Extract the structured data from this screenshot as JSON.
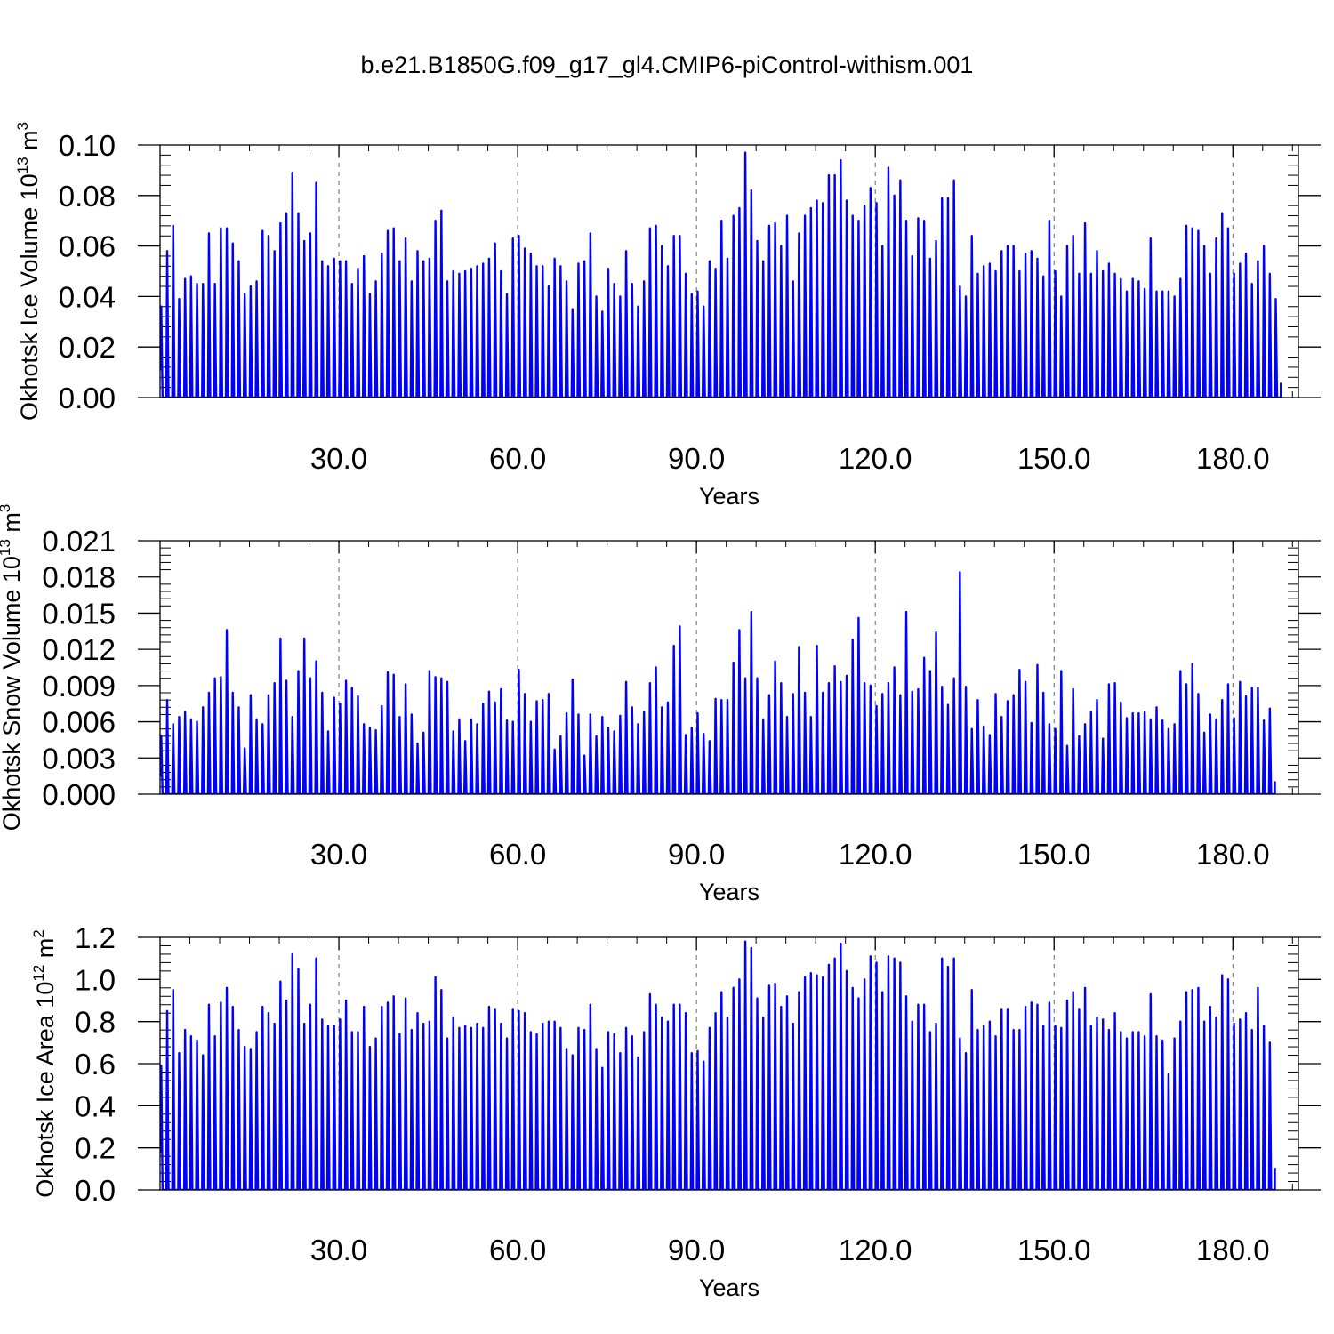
{
  "title": "b.e21.B1850G.f09_g17_gl4.CMIP6-piControl-withism.001",
  "line_color": "#0000ff",
  "chart_data": [
    {
      "type": "line",
      "title": "",
      "ylabel": "Okhotsk Ice Volume",
      "units": {
        "base": "10",
        "exp": "13",
        "unit": "m",
        "unit_exp": "3"
      },
      "xlabel": "Years",
      "xlim": [
        0,
        191
      ],
      "ylim": [
        0,
        0.1
      ],
      "yticks": [
        "0.00",
        "0.02",
        "0.04",
        "0.06",
        "0.08",
        "0.10"
      ],
      "xticks": [
        "30.0",
        "60.0",
        "90.0",
        "120.0",
        "150.0",
        "180.0"
      ],
      "x_gridlines": [
        30,
        60,
        90,
        120,
        150,
        180
      ],
      "series": [
        {
          "peaks": [
            0.036,
            0.058,
            0.068,
            0.039,
            0.047,
            0.048,
            0.045,
            0.045,
            0.065,
            0.045,
            0.067,
            0.067,
            0.061,
            0.054,
            0.041,
            0.044,
            0.046,
            0.066,
            0.064,
            0.058,
            0.069,
            0.073,
            0.089,
            0.073,
            0.062,
            0.065,
            0.085,
            0.054,
            0.052,
            0.055,
            0.054,
            0.054,
            0.045,
            0.051,
            0.056,
            0.041,
            0.046,
            0.057,
            0.066,
            0.067,
            0.054,
            0.063,
            0.046,
            0.058,
            0.054,
            0.055,
            0.07,
            0.074,
            0.046,
            0.05,
            0.049,
            0.05,
            0.051,
            0.052,
            0.053,
            0.055,
            0.061,
            0.05,
            0.041,
            0.063,
            0.064,
            0.059,
            0.057,
            0.052,
            0.052,
            0.044,
            0.055,
            0.052,
            0.046,
            0.035,
            0.053,
            0.054,
            0.065,
            0.04,
            0.034,
            0.051,
            0.045,
            0.04,
            0.058,
            0.045,
            0.036,
            0.046,
            0.067,
            0.068,
            0.06,
            0.052,
            0.064,
            0.064,
            0.049,
            0.041,
            0.042,
            0.036,
            0.054,
            0.051,
            0.07,
            0.055,
            0.072,
            0.075,
            0.097,
            0.082,
            0.062,
            0.054,
            0.068,
            0.069,
            0.06,
            0.072,
            0.046,
            0.065,
            0.072,
            0.075,
            0.078,
            0.077,
            0.088,
            0.088,
            0.094,
            0.078,
            0.072,
            0.07,
            0.076,
            0.083,
            0.077,
            0.06,
            0.091,
            0.08,
            0.086,
            0.07,
            0.056,
            0.071,
            0.07,
            0.055,
            0.062,
            0.079,
            0.079,
            0.086,
            0.044,
            0.04,
            0.064,
            0.049,
            0.052,
            0.053,
            0.05,
            0.058,
            0.06,
            0.06,
            0.05,
            0.057,
            0.058,
            0.055,
            0.048,
            0.07,
            0.05,
            0.04,
            0.06,
            0.064,
            0.049,
            0.069,
            0.049,
            0.058,
            0.05,
            0.053,
            0.049,
            0.047,
            0.042,
            0.047,
            0.046,
            0.043,
            0.063,
            0.042,
            0.042,
            0.042,
            0.04,
            0.047,
            0.068,
            0.067,
            0.066,
            0.06,
            0.049,
            0.063,
            0.073,
            0.067,
            0.049,
            0.053,
            0.057,
            0.045,
            0.054,
            0.06,
            0.049,
            0.039
          ]
        }
      ]
    },
    {
      "type": "line",
      "title": "",
      "ylabel": "Okhotsk Snow Volume",
      "units": {
        "base": "10",
        "exp": "13",
        "unit": "m",
        "unit_exp": "3"
      },
      "xlabel": "Years",
      "xlim": [
        0,
        191
      ],
      "ylim": [
        0,
        0.021
      ],
      "yticks": [
        "0.000",
        "0.003",
        "0.006",
        "0.009",
        "0.012",
        "0.015",
        "0.018",
        "0.021"
      ],
      "xticks": [
        "30.0",
        "60.0",
        "90.0",
        "120.0",
        "150.0",
        "180.0"
      ],
      "x_gridlines": [
        30,
        60,
        90,
        120,
        150,
        180
      ],
      "series": [
        {
          "peaks": [
            0.0048,
            0.0078,
            0.0058,
            0.0064,
            0.0068,
            0.0062,
            0.006,
            0.0072,
            0.0084,
            0.0096,
            0.0097,
            0.0136,
            0.0084,
            0.0072,
            0.0038,
            0.0082,
            0.0062,
            0.0058,
            0.0082,
            0.0092,
            0.0129,
            0.0094,
            0.0064,
            0.0102,
            0.0129,
            0.0096,
            0.011,
            0.0084,
            0.0052,
            0.008,
            0.0075,
            0.0094,
            0.0088,
            0.0081,
            0.0058,
            0.0055,
            0.0053,
            0.0073,
            0.0101,
            0.0099,
            0.0064,
            0.0091,
            0.0066,
            0.0042,
            0.0051,
            0.0102,
            0.0097,
            0.0096,
            0.0093,
            0.0052,
            0.0062,
            0.0044,
            0.0062,
            0.0058,
            0.0075,
            0.0085,
            0.0076,
            0.0087,
            0.0061,
            0.006,
            0.0103,
            0.0083,
            0.006,
            0.0077,
            0.0078,
            0.0083,
            0.0037,
            0.0048,
            0.0067,
            0.0095,
            0.0066,
            0.0032,
            0.0066,
            0.0048,
            0.0064,
            0.0055,
            0.0052,
            0.0065,
            0.0093,
            0.0072,
            0.0058,
            0.0068,
            0.0092,
            0.0105,
            0.0072,
            0.0076,
            0.0123,
            0.0139,
            0.0049,
            0.0055,
            0.0067,
            0.005,
            0.0044,
            0.0079,
            0.0078,
            0.0078,
            0.0109,
            0.0136,
            0.0096,
            0.0151,
            0.0096,
            0.0062,
            0.0082,
            0.011,
            0.0092,
            0.0064,
            0.0083,
            0.0122,
            0.0084,
            0.0064,
            0.0123,
            0.0084,
            0.0092,
            0.0106,
            0.0093,
            0.0098,
            0.0128,
            0.0146,
            0.0092,
            0.009,
            0.0073,
            0.0083,
            0.0092,
            0.0105,
            0.0082,
            0.0151,
            0.0085,
            0.0087,
            0.0113,
            0.0102,
            0.0134,
            0.0089,
            0.0074,
            0.0096,
            0.0184,
            0.0089,
            0.0054,
            0.0078,
            0.0056,
            0.0049,
            0.0083,
            0.0064,
            0.0077,
            0.0082,
            0.0103,
            0.0093,
            0.0059,
            0.0107,
            0.0084,
            0.0058,
            0.0054,
            0.0102,
            0.004,
            0.0087,
            0.0048,
            0.0058,
            0.0068,
            0.0078,
            0.0046,
            0.0091,
            0.0092,
            0.0076,
            0.0063,
            0.0067,
            0.0067,
            0.0068,
            0.0062,
            0.0072,
            0.0061,
            0.0054,
            0.0058,
            0.0102,
            0.0091,
            0.0108,
            0.0083,
            0.0051,
            0.0066,
            0.0062,
            0.0078,
            0.0091,
            0.0063,
            0.0093,
            0.0081,
            0.0088,
            0.0088,
            0.0061,
            0.0071
          ]
        }
      ]
    },
    {
      "type": "line",
      "title": "",
      "ylabel": "Okhotsk Ice Area",
      "units": {
        "base": "10",
        "exp": "12",
        "unit": "m",
        "unit_exp": "2"
      },
      "xlabel": "Years",
      "xlim": [
        0,
        191
      ],
      "ylim": [
        0,
        1.2
      ],
      "yticks": [
        "0.0",
        "0.2",
        "0.4",
        "0.6",
        "0.8",
        "1.0",
        "1.2"
      ],
      "xticks": [
        "30.0",
        "60.0",
        "90.0",
        "120.0",
        "150.0",
        "180.0"
      ],
      "x_gridlines": [
        30,
        60,
        90,
        120,
        150,
        180
      ],
      "series": [
        {
          "peaks": [
            0.59,
            0.85,
            0.95,
            0.65,
            0.76,
            0.73,
            0.71,
            0.64,
            0.88,
            0.73,
            0.89,
            0.96,
            0.87,
            0.76,
            0.68,
            0.67,
            0.75,
            0.87,
            0.84,
            0.79,
            0.99,
            0.9,
            1.12,
            1.05,
            0.79,
            0.88,
            1.1,
            0.81,
            0.78,
            0.78,
            0.81,
            0.9,
            0.75,
            0.75,
            0.87,
            0.68,
            0.72,
            0.87,
            0.89,
            0.92,
            0.74,
            0.91,
            0.76,
            0.84,
            0.79,
            0.8,
            1.01,
            0.95,
            0.72,
            0.82,
            0.77,
            0.78,
            0.77,
            0.79,
            0.77,
            0.87,
            0.86,
            0.79,
            0.72,
            0.86,
            0.85,
            0.84,
            0.75,
            0.74,
            0.79,
            0.8,
            0.8,
            0.77,
            0.67,
            0.64,
            0.77,
            0.76,
            0.88,
            0.67,
            0.58,
            0.75,
            0.74,
            0.65,
            0.77,
            0.73,
            0.63,
            0.75,
            0.93,
            0.88,
            0.82,
            0.8,
            0.88,
            0.88,
            0.84,
            0.65,
            0.66,
            0.61,
            0.77,
            0.84,
            0.94,
            0.82,
            0.96,
            1.0,
            1.18,
            1.15,
            0.91,
            0.82,
            0.97,
            0.98,
            0.87,
            0.92,
            0.79,
            0.94,
            1.01,
            1.03,
            1.02,
            1.01,
            1.07,
            1.1,
            1.17,
            1.04,
            0.96,
            0.91,
            1.0,
            1.11,
            1.08,
            0.94,
            1.11,
            1.1,
            1.08,
            0.92,
            0.8,
            0.88,
            0.88,
            0.75,
            0.79,
            1.1,
            1.06,
            1.1,
            0.72,
            0.65,
            0.95,
            0.76,
            0.78,
            0.8,
            0.73,
            0.86,
            0.86,
            0.76,
            0.76,
            0.87,
            0.89,
            0.88,
            0.78,
            0.89,
            0.78,
            0.77,
            0.9,
            0.94,
            0.86,
            0.96,
            0.78,
            0.82,
            0.81,
            0.76,
            0.84,
            0.75,
            0.72,
            0.75,
            0.75,
            0.73,
            0.93,
            0.73,
            0.71,
            0.55,
            0.72,
            0.8,
            0.94,
            0.95,
            0.96,
            0.8,
            0.87,
            0.82,
            1.02,
            1.0,
            0.79,
            0.81,
            0.84,
            0.76,
            0.96,
            0.78,
            0.7
          ]
        }
      ]
    }
  ]
}
